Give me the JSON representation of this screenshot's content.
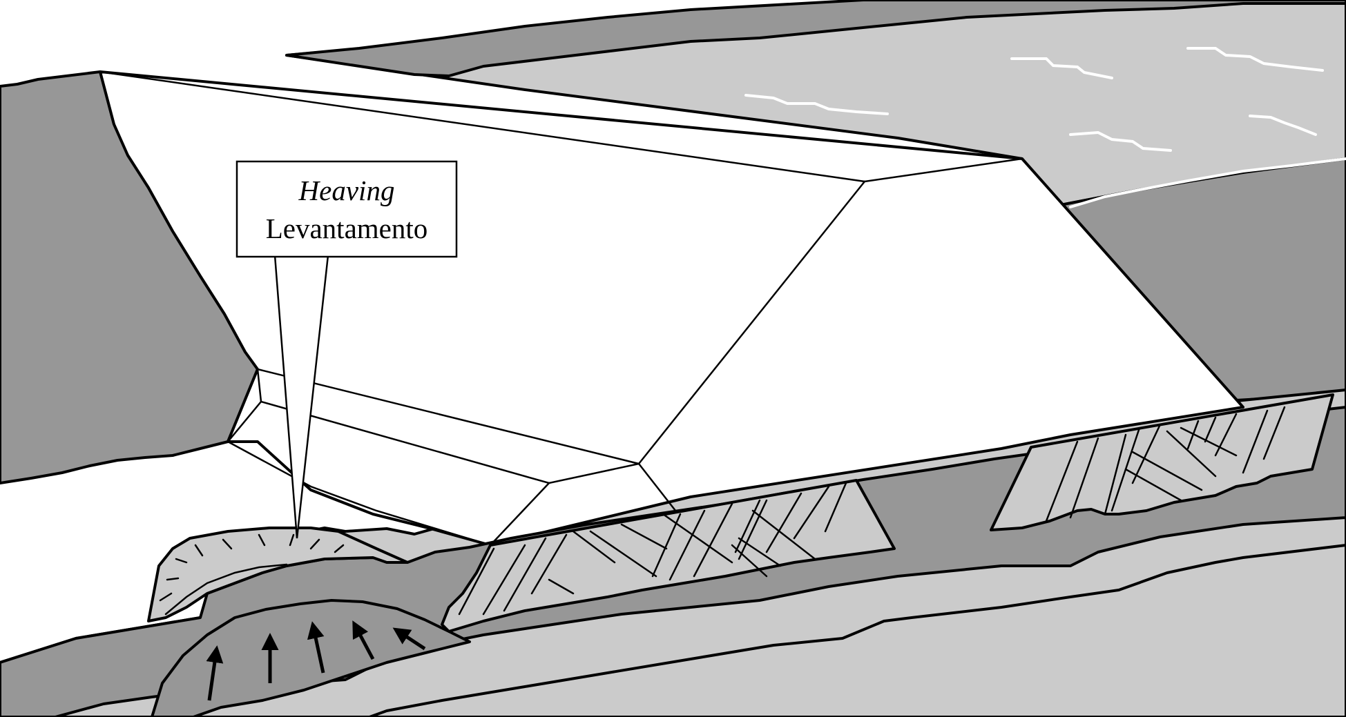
{
  "callout": {
    "english_term": "Heaving",
    "portuguese_term": "Levantamento"
  },
  "colors": {
    "dark_rock": "#979797",
    "light_ground": "#cbcbcb",
    "reservoir_water": "#cbcbcb",
    "dam_body": "#ffffff",
    "stroke": "#000000",
    "wave_highlight": "#ffffff"
  },
  "arrows": {
    "count": 5,
    "meaning": "upward pressure"
  }
}
